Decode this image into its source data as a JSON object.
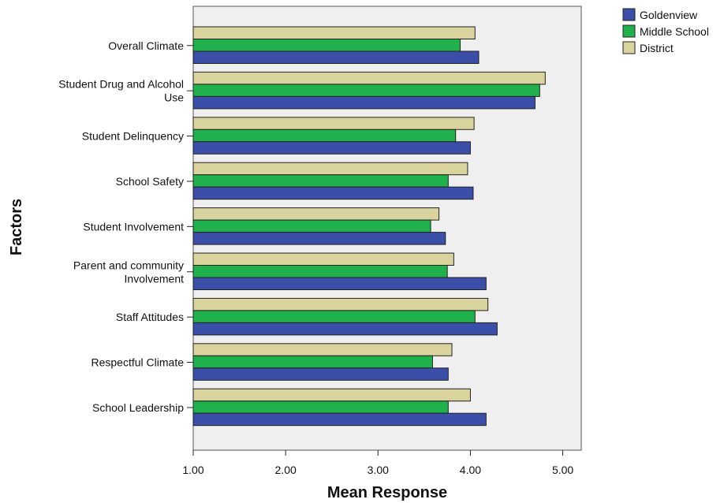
{
  "chart_data": {
    "type": "bar",
    "orientation": "horizontal",
    "categories": [
      [
        "Overall Climate"
      ],
      [
        "Student Drug and Alcohol",
        "Use"
      ],
      [
        "Student Delinquency"
      ],
      [
        "School Safety"
      ],
      [
        "Student Involvement"
      ],
      [
        "Parent and community",
        "Involvement"
      ],
      [
        "Staff Attitudes"
      ],
      [
        "Respectful Climate"
      ],
      [
        "School Leadership"
      ]
    ],
    "series": [
      {
        "name": "Goldenview",
        "color": "#3b4ea8",
        "values": [
          4.09,
          4.7,
          4.0,
          4.03,
          3.73,
          4.17,
          4.29,
          3.76,
          4.17
        ]
      },
      {
        "name": "Middle School",
        "color": "#21b14c",
        "values": [
          3.89,
          4.75,
          3.84,
          3.76,
          3.57,
          3.75,
          4.05,
          3.59,
          3.76
        ]
      },
      {
        "name": "District",
        "color": "#d9d39e",
        "values": [
          4.05,
          4.81,
          4.04,
          3.97,
          3.66,
          3.82,
          4.19,
          3.8,
          4.0
        ]
      }
    ],
    "draw_order": [
      "District",
      "Middle School",
      "Goldenview"
    ],
    "xlim": [
      1.0,
      5.2
    ],
    "xticks": [
      "1.00",
      "2.00",
      "3.00",
      "4.00",
      "5.00"
    ],
    "xtick_values": [
      1,
      2,
      3,
      4,
      5
    ],
    "xlabel": "Mean Response",
    "ylabel": "Factors",
    "legend_position": "top-right",
    "plot_background": "#efefef",
    "grid": false
  }
}
